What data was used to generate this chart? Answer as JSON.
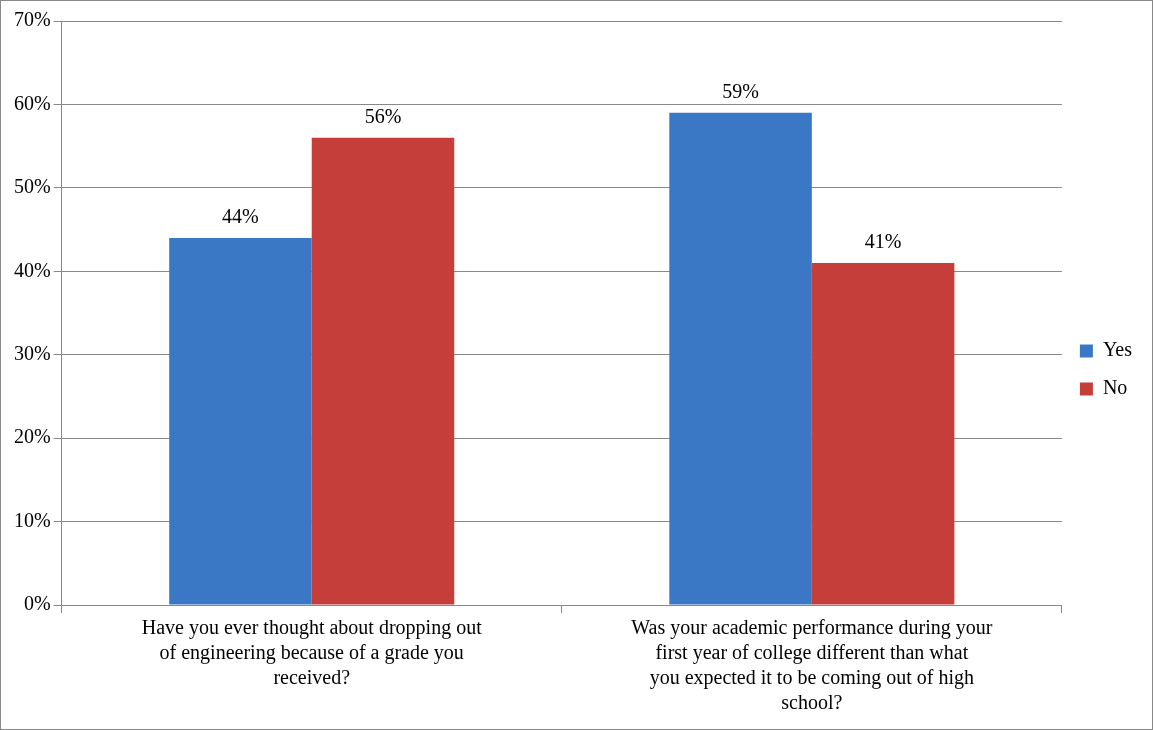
{
  "chart_data": {
    "type": "bar",
    "categories": [
      "Have you ever thought about dropping out of engineering because of a grade you received?",
      "Was your academic performance during your first year of college different than what you expected it to be coming out of high school?"
    ],
    "series": [
      {
        "name": "Yes",
        "color": "#3a78c6",
        "values": [
          44,
          59
        ],
        "value_labels": [
          "44%",
          "59%"
        ]
      },
      {
        "name": "No",
        "color": "#c63e3a",
        "values": [
          56,
          41
        ],
        "value_labels": [
          "56%",
          "41%"
        ]
      }
    ],
    "ylim": [
      0,
      70
    ],
    "yticks": [
      {
        "value": 0,
        "label": "0%"
      },
      {
        "value": 10,
        "label": "10%"
      },
      {
        "value": 20,
        "label": "20%"
      },
      {
        "value": 30,
        "label": "30%"
      },
      {
        "value": 40,
        "label": "40%"
      },
      {
        "value": 50,
        "label": "50%"
      },
      {
        "value": 60,
        "label": "60%"
      },
      {
        "value": 70,
        "label": "70%"
      }
    ],
    "grid": "y",
    "legend": "right"
  }
}
